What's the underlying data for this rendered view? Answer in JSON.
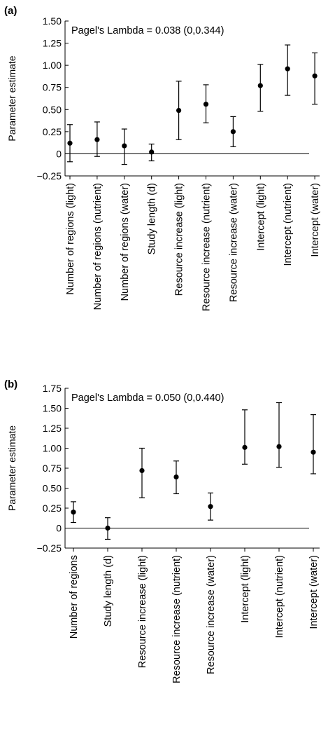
{
  "chart_data": [
    {
      "panel_label": "(a)",
      "type": "scatter",
      "subtype": "point-estimate with error bars",
      "annotation": "Pagel's Lambda = 0.038 (0,0.344)",
      "ylabel": "Parameter estimate",
      "xlabel": "",
      "ylim": [
        -0.25,
        1.5
      ],
      "yticks": [
        -0.25,
        0,
        0.25,
        0.5,
        0.75,
        1.0,
        1.25,
        1.5
      ],
      "yticklabels": [
        "−0.25",
        "0",
        "0.25",
        "0.50",
        "0.75",
        "1.00",
        "1.25",
        "1.50"
      ],
      "reference_line": 0,
      "categories": [
        "Number of regions (light)",
        "Number of regions (nutrient)",
        "Number of regions (water)",
        "Study length (d)",
        "Resource increase (light)",
        "Resource increase (nutrient)",
        "Resource increase (water)",
        "Intercept (light)",
        "Intercept (nutrient)",
        "Intercept (water)"
      ],
      "values": [
        0.12,
        0.16,
        0.09,
        0.02,
        0.49,
        0.56,
        0.25,
        0.77,
        0.96,
        0.88
      ],
      "lower": [
        -0.09,
        -0.03,
        -0.12,
        -0.08,
        0.16,
        0.35,
        0.08,
        0.48,
        0.66,
        0.56
      ],
      "upper": [
        0.33,
        0.36,
        0.28,
        0.11,
        0.82,
        0.78,
        0.42,
        1.01,
        1.23,
        1.14
      ]
    },
    {
      "panel_label": "(b)",
      "type": "scatter",
      "subtype": "point-estimate with error bars",
      "annotation": "Pagel's Lambda = 0.050 (0,0.440)",
      "ylabel": "Parameter estimate",
      "xlabel": "",
      "ylim": [
        -0.25,
        1.75
      ],
      "yticks": [
        -0.25,
        0,
        0.25,
        0.5,
        0.75,
        1.0,
        1.25,
        1.5,
        1.75
      ],
      "yticklabels": [
        "−0.25",
        "0",
        "0.25",
        "0.50",
        "0.75",
        "1.00",
        "1.25",
        "1.50",
        "1.75"
      ],
      "reference_line": 0,
      "categories": [
        "Number of regions",
        "Study length (d)",
        "Resource increase (light)",
        "Resource increase (nutrient)",
        "Resource increase (water)",
        "Intercept (light)",
        "Intercept (nutrient)",
        "Intercept (water)"
      ],
      "values": [
        0.2,
        0.0,
        0.72,
        0.64,
        0.27,
        1.01,
        1.02,
        0.95
      ],
      "lower": [
        0.07,
        -0.14,
        0.38,
        0.43,
        0.1,
        0.8,
        0.76,
        0.68
      ],
      "upper": [
        0.33,
        0.13,
        1.0,
        0.84,
        0.44,
        1.48,
        1.57,
        1.42
      ]
    }
  ]
}
